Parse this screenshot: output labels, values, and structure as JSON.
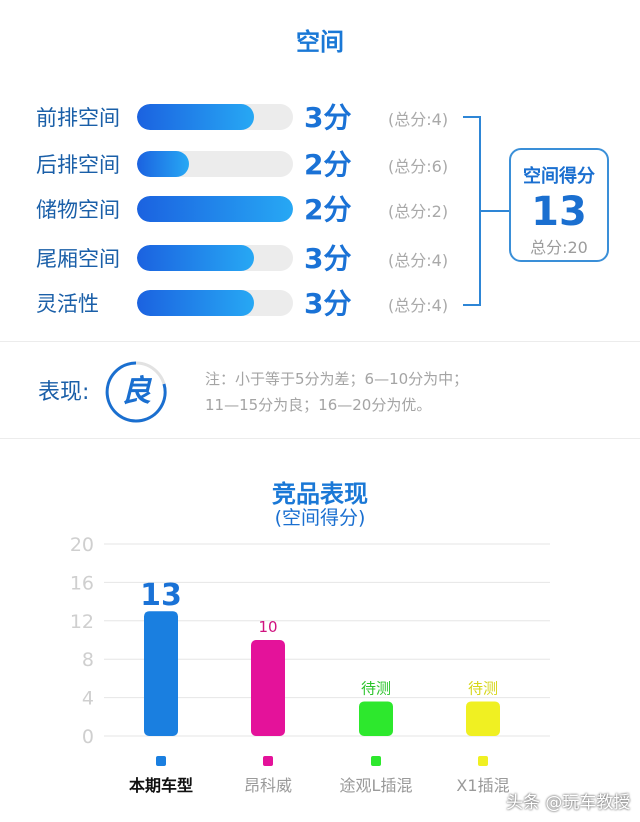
{
  "space_title": "空间",
  "rows": [
    {
      "label": "前排空间",
      "score": 3,
      "max": 4,
      "score_text": "3分",
      "total_text": "(总分:4)"
    },
    {
      "label": "后排空间",
      "score": 2,
      "max": 6,
      "score_text": "2分",
      "total_text": "(总分:6)"
    },
    {
      "label": "储物空间",
      "score": 2,
      "max": 2,
      "score_text": "2分",
      "total_text": "(总分:2)"
    },
    {
      "label": "尾厢空间",
      "score": 3,
      "max": 4,
      "score_text": "3分",
      "total_text": "(总分:4)"
    },
    {
      "label": "灵活性",
      "score": 3,
      "max": 4,
      "score_text": "3分",
      "total_text": "(总分:4)"
    }
  ],
  "summary": {
    "title": "空间得分",
    "value": "13",
    "total": "总分:20"
  },
  "performance": {
    "label": "表现:",
    "rating": "良",
    "note_line1": "注：小于等于5分为差；6—10分为中；",
    "note_line2": "11—15分为良；16—20分为优。"
  },
  "chart_data": {
    "type": "bar",
    "title": "竞品表现",
    "subtitle": "(空间得分)",
    "categories": [
      "本期车型",
      "昂科威",
      "途观L插混",
      "X1插混"
    ],
    "values": [
      13,
      10,
      3.6,
      3.6
    ],
    "data_labels": [
      "13",
      "10",
      "待测",
      "待测"
    ],
    "colors": [
      "#1a7fe0",
      "#e4129a",
      "#2de82d",
      "#f0f022"
    ],
    "label_colors": [
      "#1a72d6",
      "#d0127f",
      "#2cc42c",
      "#d6d61a"
    ],
    "yticks": [
      0,
      4,
      8,
      12,
      16,
      20
    ],
    "ylim": [
      0,
      20
    ],
    "grid": true
  },
  "watermark": "头条 @玩车教授"
}
